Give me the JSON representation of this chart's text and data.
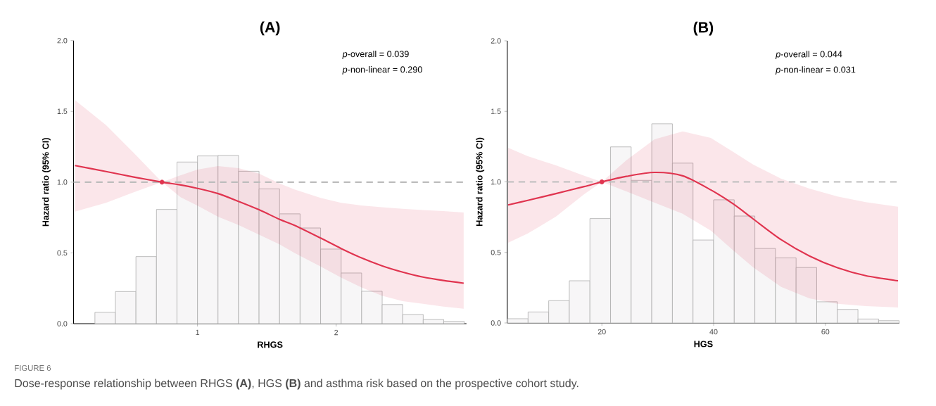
{
  "chart_data": [
    {
      "type": "line",
      "title": "(A)",
      "xlabel": "RHGS",
      "ylabel": "Hazard ratio (95% CI)",
      "xlim": [
        0.106,
        2.94
      ],
      "ylim": [
        0,
        2
      ],
      "xticks": [
        1,
        2
      ],
      "yticks": [
        {
          "value": 0,
          "label": "0.0"
        },
        {
          "value": 0.5,
          "label": "0.5"
        },
        {
          "value": 1,
          "label": "1.0"
        },
        {
          "value": 1.5,
          "label": "1.5"
        },
        {
          "value": 2,
          "label": "2.0"
        }
      ],
      "grid": false,
      "ref_lines": [
        {
          "axis": "y",
          "value": 1,
          "color": "#bdbdbd",
          "line_style": "dashed"
        }
      ],
      "annotations": [
        "*p*-overall = 0.039",
        "*p*-non-linear = 0.290"
      ],
      "series": [
        {
          "type": "histogram",
          "color": "#f7f6f7",
          "bins": [
            0.26,
            0.408,
            0.556,
            0.704,
            0.852,
            1.0,
            1.148,
            1.296,
            1.444,
            1.592,
            1.74,
            1.888,
            2.036,
            2.184,
            2.332,
            2.48,
            2.628,
            2.776,
            2.924
          ],
          "values": [
            0.08,
            0.227,
            0.474,
            0.807,
            1.142,
            1.185,
            1.189,
            1.077,
            0.952,
            0.776,
            0.676,
            0.527,
            0.358,
            0.229,
            0.135,
            0.065,
            0.029,
            0.016
          ]
        },
        {
          "color": "#e0344f",
          "x": [
            0.116,
            0.34,
            0.54,
            0.744,
            0.88,
            1.0,
            1.148,
            1.296,
            1.444,
            1.592,
            1.7,
            1.888,
            2.036,
            2.18,
            2.33,
            2.48,
            2.626,
            2.774,
            2.92
          ],
          "values": [
            1.117,
            1.075,
            1.036,
            1.0,
            0.98,
            0.956,
            0.919,
            0.864,
            0.805,
            0.737,
            0.695,
            0.605,
            0.531,
            0.466,
            0.409,
            0.364,
            0.329,
            0.305,
            0.286
          ],
          "upper": [
            1.579,
            1.403,
            1.207,
            1.0,
            1.049,
            1.089,
            1.113,
            1.099,
            1.06,
            0.991,
            0.948,
            0.889,
            0.854,
            0.835,
            0.823,
            0.811,
            0.803,
            0.795,
            0.785
          ],
          "lower": [
            0.791,
            0.854,
            0.928,
            1.0,
            0.892,
            0.834,
            0.756,
            0.697,
            0.629,
            0.56,
            0.5,
            0.404,
            0.325,
            0.257,
            0.198,
            0.159,
            0.14,
            0.12,
            0.106
          ]
        },
        {
          "type": "scatter",
          "color": "#e0344f",
          "marker": "circle",
          "x": [
            0.744
          ],
          "values": [
            1.0
          ]
        }
      ]
    },
    {
      "type": "line",
      "title": "(B)",
      "xlabel": "HGS",
      "ylabel": "Hazard ratio (95% CI)",
      "xlim": [
        3.07,
        73.25
      ],
      "ylim": [
        0,
        2
      ],
      "xticks": [
        20,
        40,
        60
      ],
      "yticks": [
        {
          "value": 0,
          "label": "0.0"
        },
        {
          "value": 0.5,
          "label": "0.5"
        },
        {
          "value": 1,
          "label": "1.0"
        },
        {
          "value": 1.5,
          "label": "1.5"
        },
        {
          "value": 2,
          "label": "2.0"
        }
      ],
      "grid": false,
      "ref_lines": [
        {
          "axis": "y",
          "value": 1,
          "color": "#bdbdbd",
          "line_style": "dashed"
        }
      ],
      "annotations": [
        "*p*-overall = 0.044",
        "*p*-non-linear = 0.031",
        "FIGURE 6",
        "Dose-response relationship between RHGS **(A)**, HGS **(B)** and asthma risk based on the prospective cohort study."
      ],
      "series": [
        {
          "type": "histogram",
          "color": "#f7f6f7",
          "bins": [
            3.1,
            6.79,
            10.48,
            14.17,
            17.86,
            21.55,
            25.24,
            28.93,
            32.62,
            36.31,
            40.0,
            43.69,
            47.38,
            51.07,
            54.76,
            58.45,
            62.14,
            65.83,
            69.52,
            73.21
          ],
          "values": [
            0.03,
            0.078,
            0.158,
            0.299,
            0.74,
            1.248,
            1.011,
            1.412,
            1.133,
            0.588,
            0.873,
            0.758,
            0.528,
            0.461,
            0.393,
            0.15,
            0.096,
            0.028,
            0.016
          ]
        },
        {
          "color": "#e0344f",
          "x": [
            3.22,
            6.75,
            11.79,
            16.83,
            20.0,
            24.38,
            29.42,
            34.46,
            39.5,
            43.53,
            47.05,
            52.09,
            57.13,
            62.17,
            67.2,
            73.0
          ],
          "values": [
            0.837,
            0.869,
            0.917,
            0.967,
            1.0,
            1.039,
            1.067,
            1.043,
            0.943,
            0.843,
            0.738,
            0.59,
            0.475,
            0.391,
            0.335,
            0.299
          ],
          "upper": [
            1.242,
            1.182,
            1.117,
            1.043,
            1.0,
            1.153,
            1.302,
            1.358,
            1.312,
            1.212,
            1.123,
            1.023,
            0.953,
            0.897,
            0.857,
            0.824
          ],
          "lower": [
            0.568,
            0.634,
            0.754,
            0.913,
            1.0,
            0.933,
            0.853,
            0.774,
            0.654,
            0.514,
            0.395,
            0.255,
            0.175,
            0.136,
            0.12,
            0.11
          ]
        },
        {
          "type": "scatter",
          "color": "#e0344f",
          "marker": "circle",
          "x": [
            20.0
          ],
          "values": [
            1.0
          ]
        }
      ]
    }
  ]
}
